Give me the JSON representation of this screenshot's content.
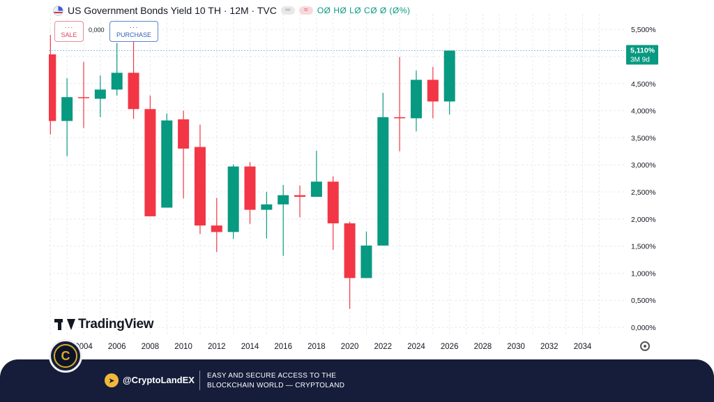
{
  "header": {
    "title": "US Government Bonds Yield 10 TH · 12M · TVC",
    "pill_left": "═",
    "pill_right": "≈",
    "ohlc": "OØ HØ LØ CØ Ø (Ø%)"
  },
  "trade": {
    "sale_dots": "···",
    "sale_label": "SALE",
    "spread": "0,000",
    "purchase_dots": "···",
    "purchase_label": "PURCHASE"
  },
  "price_tag": {
    "value": "5,110%",
    "countdown": "3M 9d"
  },
  "brand": {
    "tradingview": "TradingView"
  },
  "footer": {
    "logo_letter": "C",
    "handle": "@CryptoLandEX",
    "slogan_line1": "EASY AND SECURE ACCESS TO THE",
    "slogan_line2": "BLOCKCHAIN WORLD — CRYPTOLAND"
  },
  "colors": {
    "up": "#089981",
    "down": "#f23645",
    "grid": "#e6e9ef",
    "current_line": "#8fbfe8"
  },
  "icons": [
    "us-flag-icon",
    "tradingview-logo-icon",
    "settings-gear-icon",
    "cryptoland-logo-icon",
    "telegram-icon"
  ],
  "chart_data": {
    "type": "candlestick",
    "y_ticks": [
      {
        "value": 0.0,
        "label": "0,000%"
      },
      {
        "value": 0.5,
        "label": "0,500%"
      },
      {
        "value": 1.0,
        "label": "1,000%"
      },
      {
        "value": 1.5,
        "label": "1,500%"
      },
      {
        "value": 2.0,
        "label": "2,000%"
      },
      {
        "value": 2.5,
        "label": "2,500%"
      },
      {
        "value": 3.0,
        "label": "3,000%"
      },
      {
        "value": 3.5,
        "label": "3,500%"
      },
      {
        "value": 4.0,
        "label": "4,000%"
      },
      {
        "value": 4.5,
        "label": "4,500%"
      },
      {
        "value": 5.0,
        "label": "5,000%"
      },
      {
        "value": 5.5,
        "label": "5,500%"
      }
    ],
    "x_ticks": [
      "2004",
      "2006",
      "2008",
      "2010",
      "2012",
      "2014",
      "2016",
      "2018",
      "2020",
      "2022",
      "2024",
      "2026",
      "2028",
      "2030",
      "2032",
      "2034"
    ],
    "ylim": [
      0,
      5.5
    ],
    "xlim": [
      2002,
      2035
    ],
    "current_value": 5.11,
    "candles": [
      {
        "year": 2002,
        "open": 5.04,
        "high": 5.4,
        "low": 3.56,
        "close": 3.81
      },
      {
        "year": 2003,
        "open": 3.81,
        "high": 4.6,
        "low": 3.16,
        "close": 4.25
      },
      {
        "year": 2004,
        "open": 4.25,
        "high": 4.9,
        "low": 3.68,
        "close": 4.24
      },
      {
        "year": 2005,
        "open": 4.22,
        "high": 4.65,
        "low": 3.88,
        "close": 4.39
      },
      {
        "year": 2006,
        "open": 4.39,
        "high": 5.25,
        "low": 4.28,
        "close": 4.7
      },
      {
        "year": 2007,
        "open": 4.7,
        "high": 5.3,
        "low": 3.85,
        "close": 4.03
      },
      {
        "year": 2008,
        "open": 4.03,
        "high": 4.28,
        "low": 2.05,
        "close": 2.05
      },
      {
        "year": 2009,
        "open": 2.21,
        "high": 3.95,
        "low": 2.21,
        "close": 3.82
      },
      {
        "year": 2010,
        "open": 3.84,
        "high": 4.0,
        "low": 2.38,
        "close": 3.3
      },
      {
        "year": 2011,
        "open": 3.33,
        "high": 3.74,
        "low": 1.72,
        "close": 1.88
      },
      {
        "year": 2012,
        "open": 1.88,
        "high": 2.39,
        "low": 1.39,
        "close": 1.76
      },
      {
        "year": 2013,
        "open": 1.76,
        "high": 3.01,
        "low": 1.63,
        "close": 2.97
      },
      {
        "year": 2014,
        "open": 2.97,
        "high": 3.05,
        "low": 1.91,
        "close": 2.17
      },
      {
        "year": 2015,
        "open": 2.17,
        "high": 2.5,
        "low": 1.64,
        "close": 2.27
      },
      {
        "year": 2016,
        "open": 2.27,
        "high": 2.63,
        "low": 1.32,
        "close": 2.44
      },
      {
        "year": 2017,
        "open": 2.44,
        "high": 2.62,
        "low": 2.03,
        "close": 2.41
      },
      {
        "year": 2018,
        "open": 2.41,
        "high": 3.26,
        "low": 2.41,
        "close": 2.69
      },
      {
        "year": 2019,
        "open": 2.69,
        "high": 2.79,
        "low": 1.43,
        "close": 1.92
      },
      {
        "year": 2020,
        "open": 1.92,
        "high": 1.95,
        "low": 0.34,
        "close": 0.91
      },
      {
        "year": 2021,
        "open": 0.91,
        "high": 1.77,
        "low": 0.91,
        "close": 1.51
      },
      {
        "year": 2022,
        "open": 1.51,
        "high": 4.33,
        "low": 1.51,
        "close": 3.88
      },
      {
        "year": 2023,
        "open": 3.88,
        "high": 4.99,
        "low": 3.25,
        "close": 3.86
      },
      {
        "year": 2024,
        "open": 3.86,
        "high": 4.74,
        "low": 3.62,
        "close": 4.57
      },
      {
        "year": 2025,
        "open": 4.57,
        "high": 4.81,
        "low": 3.86,
        "close": 4.17
      },
      {
        "year": 2026,
        "open": 4.17,
        "high": 5.11,
        "low": 3.93,
        "close": 5.11
      }
    ]
  }
}
